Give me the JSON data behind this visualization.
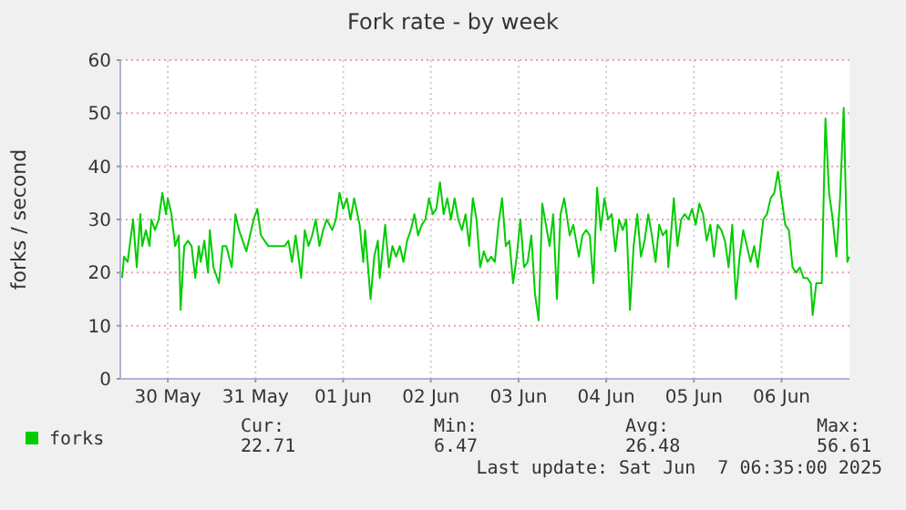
{
  "chart_data": {
    "type": "line",
    "title": "Fork rate - by week",
    "ylabel": "forks / second",
    "xlim": [
      "2025-05-29T23:00",
      "2025-06-07T06:35"
    ],
    "xticks": [
      {
        "value": "2025-05-30T12:00",
        "label": "30 May"
      },
      {
        "value": "2025-05-31T12:00",
        "label": "31 May"
      },
      {
        "value": "2025-06-01T12:00",
        "label": "01 Jun"
      },
      {
        "value": "2025-06-02T12:00",
        "label": "02 Jun"
      },
      {
        "value": "2025-06-03T12:00",
        "label": "03 Jun"
      },
      {
        "value": "2025-06-04T12:00",
        "label": "04 Jun"
      },
      {
        "value": "2025-06-05T12:00",
        "label": "05 Jun"
      },
      {
        "value": "2025-06-06T12:00",
        "label": "06 Jun"
      }
    ],
    "ylim": [
      0,
      60
    ],
    "yticks": [
      0,
      10,
      20,
      30,
      40,
      50,
      60
    ],
    "grid": true,
    "legend": "bottom left",
    "line_style": "solid",
    "annotations": [
      "Cur:",
      "22.71",
      "Min:",
      "6.47",
      "Avg:",
      "26.48",
      "Max:",
      "56.61",
      "Last update: Sat Jun  7 06:35:00 2025"
    ],
    "x": [
      "2025-05-29T23:30",
      "2025-05-30T00:00",
      "2025-05-30T01:00",
      "2025-05-30T02:30",
      "2025-05-30T03:30",
      "2025-05-30T04:30",
      "2025-05-30T05:00",
      "2025-05-30T06:00",
      "2025-05-30T07:00",
      "2025-05-30T07:30",
      "2025-05-30T08:30",
      "2025-05-30T09:30",
      "2025-05-30T10:30",
      "2025-05-30T11:30",
      "2025-05-30T12:00",
      "2025-05-30T13:00",
      "2025-05-30T14:00",
      "2025-05-30T15:00",
      "2025-05-30T15:30",
      "2025-05-30T16:30",
      "2025-05-30T17:30",
      "2025-05-30T18:30",
      "2025-05-30T19:30",
      "2025-05-30T20:30",
      "2025-05-30T21:00",
      "2025-05-30T22:00",
      "2025-05-30T23:00",
      "2025-05-30T23:30",
      "2025-05-31T00:30",
      "2025-05-31T02:00",
      "2025-05-31T03:00",
      "2025-05-31T04:00",
      "2025-05-31T05:30",
      "2025-05-31T06:30",
      "2025-05-31T07:30",
      "2025-05-31T08:30",
      "2025-05-31T09:30",
      "2025-05-31T10:30",
      "2025-05-31T11:30",
      "2025-05-31T12:30",
      "2025-05-31T13:30",
      "2025-05-31T14:30",
      "2025-05-31T15:30",
      "2025-05-31T17:00",
      "2025-05-31T18:00",
      "2025-05-31T19:00",
      "2025-05-31T20:00",
      "2025-05-31T21:00",
      "2025-05-31T22:00",
      "2025-05-31T23:00",
      "2025-06-01T00:30",
      "2025-06-01T01:30",
      "2025-06-01T02:30",
      "2025-06-01T03:30",
      "2025-06-01T04:30",
      "2025-06-01T05:30",
      "2025-06-01T06:30",
      "2025-06-01T07:30",
      "2025-06-01T09:00",
      "2025-06-01T10:00",
      "2025-06-01T11:00",
      "2025-06-01T12:00",
      "2025-06-01T13:00",
      "2025-06-01T14:00",
      "2025-06-01T15:00",
      "2025-06-01T16:30",
      "2025-06-01T17:30",
      "2025-06-01T18:00",
      "2025-06-01T19:30",
      "2025-06-01T20:30",
      "2025-06-01T21:30",
      "2025-06-01T22:00",
      "2025-06-01T23:30",
      "2025-06-02T00:30",
      "2025-06-02T01:30",
      "2025-06-02T02:30",
      "2025-06-02T03:30",
      "2025-06-02T04:30",
      "2025-06-02T05:30",
      "2025-06-02T06:30",
      "2025-06-02T07:30",
      "2025-06-02T08:30",
      "2025-06-02T09:30",
      "2025-06-02T10:30",
      "2025-06-02T11:30",
      "2025-06-02T12:30",
      "2025-06-02T13:30",
      "2025-06-02T14:30",
      "2025-06-02T15:30",
      "2025-06-02T16:30",
      "2025-06-02T17:30",
      "2025-06-02T18:30",
      "2025-06-02T19:30",
      "2025-06-02T20:30",
      "2025-06-02T21:30",
      "2025-06-02T22:30",
      "2025-06-02T23:30",
      "2025-06-03T00:30",
      "2025-06-03T01:30",
      "2025-06-03T02:30",
      "2025-06-03T03:30",
      "2025-06-03T04:30",
      "2025-06-03T05:30",
      "2025-06-03T06:30",
      "2025-06-03T07:30",
      "2025-06-03T08:30",
      "2025-06-03T09:30",
      "2025-06-03T10:30",
      "2025-06-03T11:30",
      "2025-06-03T12:30",
      "2025-06-03T13:30",
      "2025-06-03T14:30",
      "2025-06-03T15:30",
      "2025-06-03T16:30",
      "2025-06-03T17:30",
      "2025-06-03T18:30",
      "2025-06-03T19:30",
      "2025-06-03T20:30",
      "2025-06-03T21:30",
      "2025-06-03T22:30",
      "2025-06-03T23:30",
      "2025-06-04T00:30",
      "2025-06-04T02:00",
      "2025-06-04T03:00",
      "2025-06-04T04:30",
      "2025-06-04T05:30",
      "2025-06-04T06:30",
      "2025-06-04T07:30",
      "2025-06-04T08:30",
      "2025-06-04T09:30",
      "2025-06-04T10:30",
      "2025-06-04T11:30",
      "2025-06-04T12:30",
      "2025-06-04T13:30",
      "2025-06-04T14:30",
      "2025-06-04T15:30",
      "2025-06-04T16:30",
      "2025-06-04T17:30",
      "2025-06-04T18:30",
      "2025-06-04T19:30",
      "2025-06-04T20:30",
      "2025-06-04T21:30",
      "2025-06-04T22:30",
      "2025-06-04T23:30",
      "2025-06-05T00:30",
      "2025-06-05T01:30",
      "2025-06-05T02:30",
      "2025-06-05T03:30",
      "2025-06-05T04:30",
      "2025-06-05T05:00",
      "2025-06-05T06:30",
      "2025-06-05T07:30",
      "2025-06-05T08:30",
      "2025-06-05T09:30",
      "2025-06-05T10:30",
      "2025-06-05T11:30",
      "2025-06-05T12:30",
      "2025-06-05T13:30",
      "2025-06-05T14:30",
      "2025-06-05T15:30",
      "2025-06-05T16:30",
      "2025-06-05T17:30",
      "2025-06-05T18:30",
      "2025-06-05T19:30",
      "2025-06-05T20:30",
      "2025-06-05T21:30",
      "2025-06-05T22:30",
      "2025-06-05T23:30",
      "2025-06-06T00:30",
      "2025-06-06T01:30",
      "2025-06-06T02:30",
      "2025-06-06T03:30",
      "2025-06-06T04:30",
      "2025-06-06T05:30",
      "2025-06-06T07:00",
      "2025-06-06T08:00",
      "2025-06-06T09:00",
      "2025-06-06T10:00",
      "2025-06-06T11:00",
      "2025-06-06T12:00",
      "2025-06-06T13:00",
      "2025-06-06T14:00",
      "2025-06-06T15:00",
      "2025-06-06T16:00",
      "2025-06-06T17:00",
      "2025-06-06T18:00",
      "2025-06-06T19:00",
      "2025-06-06T20:00",
      "2025-06-06T20:30",
      "2025-06-06T21:30",
      "2025-06-06T23:00",
      "2025-06-07T00:00",
      "2025-06-07T01:00",
      "2025-06-07T02:00",
      "2025-06-07T03:00",
      "2025-06-07T04:00",
      "2025-06-07T05:00",
      "2025-06-07T06:00",
      "2025-06-07T06:30"
    ],
    "series": [
      {
        "name": "forks",
        "color": "#00cc00",
        "values": [
          19,
          23,
          22,
          30,
          21,
          31,
          25,
          28,
          25,
          30,
          28,
          30,
          35,
          31,
          34,
          31,
          25,
          27,
          13,
          25,
          26,
          25,
          19,
          25,
          22,
          26,
          20,
          28,
          21,
          18,
          25,
          25,
          21,
          31,
          28,
          26,
          24,
          27,
          30,
          32,
          27,
          26,
          25,
          25,
          25,
          25,
          25,
          26,
          22,
          27,
          19,
          28,
          25,
          27,
          30,
          25,
          28,
          30,
          28,
          30,
          35,
          32,
          34,
          30,
          34,
          29,
          22,
          28,
          15,
          23,
          26,
          19,
          29,
          21,
          25,
          23,
          25,
          22,
          26,
          28,
          31,
          27,
          29,
          30,
          34,
          31,
          32,
          37,
          31,
          34,
          30,
          34,
          30,
          28,
          31,
          25,
          34,
          30,
          21,
          24,
          22,
          23,
          22,
          29,
          34,
          25,
          26,
          18,
          23,
          30,
          21,
          22,
          27,
          16,
          11,
          33,
          29,
          25,
          31,
          15,
          31,
          34,
          27,
          29,
          23,
          27,
          28,
          27,
          18,
          36,
          28,
          34,
          30,
          31,
          24,
          30,
          28,
          30,
          13,
          25,
          31,
          23,
          26,
          31,
          27,
          22,
          29,
          27,
          28,
          21,
          34,
          25,
          30,
          31,
          30,
          32,
          29,
          33,
          31,
          26,
          29,
          23,
          29,
          28,
          26,
          21,
          29,
          15,
          23,
          28,
          25,
          22,
          25,
          21,
          30,
          31,
          34,
          35,
          39,
          34,
          29,
          28,
          21,
          20,
          21,
          19,
          19,
          18,
          12,
          18,
          18,
          49,
          35,
          30,
          23,
          34,
          51,
          22,
          23
        ]
      }
    ]
  }
}
